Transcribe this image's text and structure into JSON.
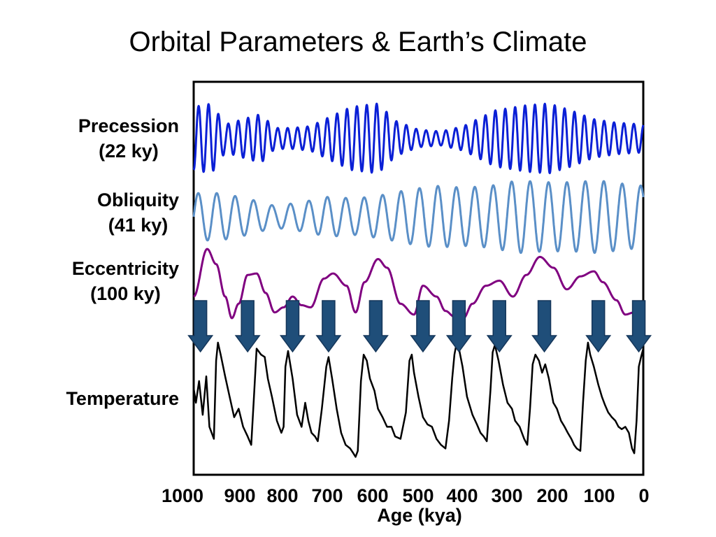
{
  "title": "Orbital Parameters & Earth’s Climate",
  "colors": {
    "precession": "#0a1fd6",
    "obliquity": "#5a8fc7",
    "eccentricity": "#800080",
    "temperature": "#000000",
    "arrow": "#1f4e79"
  },
  "chart_data": {
    "type": "line",
    "xlabel": "Age (kya)",
    "x_ticks": [
      "1000",
      "900",
      "800",
      "700",
      "600",
      "500",
      "400",
      "300",
      "200",
      "100",
      "0"
    ],
    "xlim": [
      1000,
      0
    ],
    "x_reversed": true,
    "grid": false,
    "series": [
      {
        "name": "Precession",
        "period_label": "(22 ky)",
        "period_ky": 22,
        "amplitude_envelope": [
          [
            1000,
            0.9
          ],
          [
            960,
            1.0
          ],
          [
            930,
            0.4
          ],
          [
            890,
            0.55
          ],
          [
            850,
            0.7
          ],
          [
            820,
            0.3
          ],
          [
            780,
            0.3
          ],
          [
            740,
            0.35
          ],
          [
            700,
            0.6
          ],
          [
            650,
            0.9
          ],
          [
            590,
            1.0
          ],
          [
            550,
            0.5
          ],
          [
            500,
            0.25
          ],
          [
            450,
            0.2
          ],
          [
            400,
            0.35
          ],
          [
            330,
            0.8
          ],
          [
            260,
            0.95
          ],
          [
            210,
            1.0
          ],
          [
            160,
            0.8
          ],
          [
            110,
            0.55
          ],
          [
            60,
            0.45
          ],
          [
            0,
            0.4
          ]
        ]
      },
      {
        "name": "Obliquity",
        "period_label": "(41 ky)",
        "period_ky": 41,
        "amplitude_envelope": [
          [
            1000,
            0.65
          ],
          [
            940,
            0.65
          ],
          [
            880,
            0.5
          ],
          [
            820,
            0.3
          ],
          [
            760,
            0.4
          ],
          [
            700,
            0.55
          ],
          [
            640,
            0.5
          ],
          [
            580,
            0.6
          ],
          [
            520,
            0.75
          ],
          [
            460,
            0.85
          ],
          [
            400,
            0.8
          ],
          [
            340,
            0.85
          ],
          [
            280,
            1.0
          ],
          [
            220,
            0.95
          ],
          [
            160,
            0.95
          ],
          [
            100,
            1.0
          ],
          [
            40,
            0.9
          ],
          [
            0,
            0.85
          ]
        ]
      },
      {
        "name": "Eccentricity",
        "period_label": "(100 ky)",
        "points": [
          [
            1000,
            0.3
          ],
          [
            970,
            0.96
          ],
          [
            950,
            0.75
          ],
          [
            930,
            0.3
          ],
          [
            915,
            0.0
          ],
          [
            900,
            0.2
          ],
          [
            880,
            0.6
          ],
          [
            860,
            0.62
          ],
          [
            840,
            0.35
          ],
          [
            820,
            0.08
          ],
          [
            800,
            0.15
          ],
          [
            780,
            0.3
          ],
          [
            760,
            0.18
          ],
          [
            740,
            0.15
          ],
          [
            710,
            0.55
          ],
          [
            690,
            0.62
          ],
          [
            660,
            0.45
          ],
          [
            640,
            0.08
          ],
          [
            620,
            0.5
          ],
          [
            590,
            0.82
          ],
          [
            570,
            0.7
          ],
          [
            540,
            0.2
          ],
          [
            510,
            0.05
          ],
          [
            490,
            0.45
          ],
          [
            460,
            0.3
          ],
          [
            440,
            0.1
          ],
          [
            420,
            0.02
          ],
          [
            400,
            0.0
          ],
          [
            380,
            0.2
          ],
          [
            350,
            0.45
          ],
          [
            320,
            0.52
          ],
          [
            290,
            0.3
          ],
          [
            260,
            0.6
          ],
          [
            230,
            0.85
          ],
          [
            200,
            0.7
          ],
          [
            170,
            0.4
          ],
          [
            140,
            0.58
          ],
          [
            110,
            0.65
          ],
          [
            90,
            0.5
          ],
          [
            60,
            0.25
          ],
          [
            40,
            0.05
          ],
          [
            20,
            0.08
          ],
          [
            0,
            0.12
          ]
        ]
      },
      {
        "name": "Temperature",
        "points": [
          [
            1000,
            0.62
          ],
          [
            995,
            0.5
          ],
          [
            988,
            0.68
          ],
          [
            980,
            0.4
          ],
          [
            972,
            0.72
          ],
          [
            965,
            0.3
          ],
          [
            955,
            0.2
          ],
          [
            950,
            0.85
          ],
          [
            946,
            1.0
          ],
          [
            940,
            0.9
          ],
          [
            930,
            0.72
          ],
          [
            920,
            0.55
          ],
          [
            910,
            0.38
          ],
          [
            900,
            0.45
          ],
          [
            890,
            0.3
          ],
          [
            880,
            0.22
          ],
          [
            872,
            0.15
          ],
          [
            866,
            0.55
          ],
          [
            860,
            0.95
          ],
          [
            850,
            0.9
          ],
          [
            842,
            0.88
          ],
          [
            835,
            0.7
          ],
          [
            826,
            0.55
          ],
          [
            815,
            0.35
          ],
          [
            805,
            0.25
          ],
          [
            800,
            0.3
          ],
          [
            796,
            0.8
          ],
          [
            790,
            0.93
          ],
          [
            780,
            0.7
          ],
          [
            770,
            0.4
          ],
          [
            760,
            0.3
          ],
          [
            752,
            0.5
          ],
          [
            745,
            0.35
          ],
          [
            738,
            0.25
          ],
          [
            730,
            0.22
          ],
          [
            724,
            0.18
          ],
          [
            715,
            0.45
          ],
          [
            705,
            0.8
          ],
          [
            700,
            0.88
          ],
          [
            692,
            0.7
          ],
          [
            682,
            0.45
          ],
          [
            672,
            0.25
          ],
          [
            662,
            0.15
          ],
          [
            652,
            0.12
          ],
          [
            645,
            0.08
          ],
          [
            640,
            0.05
          ],
          [
            635,
            0.1
          ],
          [
            628,
            0.68
          ],
          [
            622,
            0.9
          ],
          [
            615,
            0.85
          ],
          [
            608,
            0.7
          ],
          [
            598,
            0.6
          ],
          [
            590,
            0.45
          ],
          [
            580,
            0.38
          ],
          [
            570,
            0.3
          ],
          [
            560,
            0.3
          ],
          [
            552,
            0.22
          ],
          [
            540,
            0.2
          ],
          [
            528,
            0.42
          ],
          [
            520,
            0.85
          ],
          [
            515,
            0.9
          ],
          [
            510,
            0.75
          ],
          [
            500,
            0.55
          ],
          [
            490,
            0.38
          ],
          [
            480,
            0.32
          ],
          [
            470,
            0.3
          ],
          [
            460,
            0.2
          ],
          [
            450,
            0.15
          ],
          [
            440,
            0.12
          ],
          [
            432,
            0.35
          ],
          [
            425,
            0.7
          ],
          [
            420,
            0.9
          ],
          [
            415,
            1.0
          ],
          [
            410,
            0.95
          ],
          [
            402,
            0.8
          ],
          [
            392,
            0.55
          ],
          [
            380,
            0.4
          ],
          [
            370,
            0.32
          ],
          [
            362,
            0.25
          ],
          [
            355,
            0.22
          ],
          [
            348,
            0.18
          ],
          [
            340,
            0.6
          ],
          [
            335,
            0.92
          ],
          [
            330,
            0.98
          ],
          [
            322,
            0.85
          ],
          [
            312,
            0.65
          ],
          [
            302,
            0.5
          ],
          [
            292,
            0.45
          ],
          [
            285,
            0.35
          ],
          [
            275,
            0.3
          ],
          [
            265,
            0.2
          ],
          [
            258,
            0.15
          ],
          [
            252,
            0.45
          ],
          [
            246,
            0.82
          ],
          [
            240,
            0.9
          ],
          [
            232,
            0.85
          ],
          [
            225,
            0.75
          ],
          [
            218,
            0.82
          ],
          [
            210,
            0.7
          ],
          [
            200,
            0.5
          ],
          [
            192,
            0.45
          ],
          [
            183,
            0.35
          ],
          [
            175,
            0.3
          ],
          [
            168,
            0.25
          ],
          [
            160,
            0.2
          ],
          [
            154,
            0.15
          ],
          [
            148,
            0.12
          ],
          [
            140,
            0.1
          ],
          [
            134,
            0.5
          ],
          [
            128,
            0.85
          ],
          [
            123,
            1.0
          ],
          [
            118,
            0.9
          ],
          [
            110,
            0.8
          ],
          [
            100,
            0.65
          ],
          [
            92,
            0.55
          ],
          [
            85,
            0.48
          ],
          [
            78,
            0.42
          ],
          [
            70,
            0.38
          ],
          [
            62,
            0.35
          ],
          [
            55,
            0.3
          ],
          [
            48,
            0.28
          ],
          [
            40,
            0.3
          ],
          [
            32,
            0.25
          ],
          [
            25,
            0.12
          ],
          [
            20,
            0.08
          ],
          [
            15,
            0.35
          ],
          [
            10,
            0.8
          ],
          [
            5,
            0.88
          ],
          [
            0,
            0.95
          ]
        ]
      }
    ],
    "arrows_at_ky": [
      985,
      880,
      780,
      700,
      595,
      490,
      410,
      320,
      220,
      100,
      10
    ]
  }
}
